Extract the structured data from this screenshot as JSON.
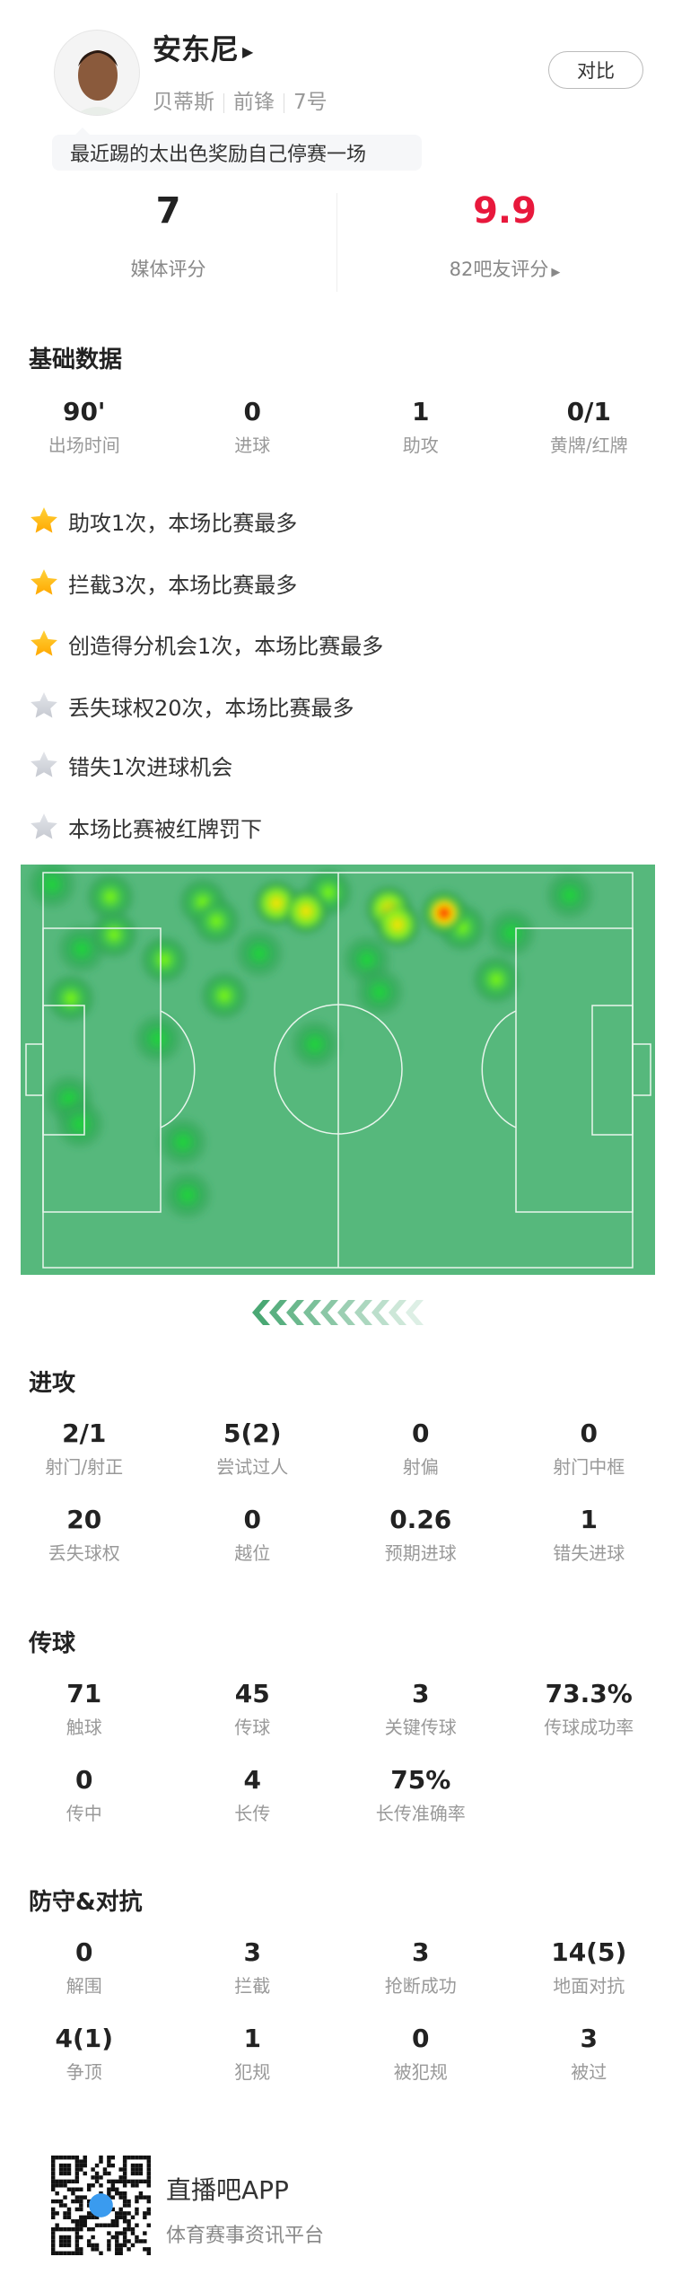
{
  "player": {
    "name": "安东尼",
    "team": "贝蒂斯",
    "position": "前锋",
    "number": "7号",
    "comment": "最近踢的太出色奖励自己停赛一场",
    "compare_label": "对比"
  },
  "ratings": {
    "media": {
      "value": "7",
      "label": "媒体评分"
    },
    "fans": {
      "value": "9.9",
      "label": "82吧友评分",
      "color": "#e8183c"
    }
  },
  "basic": {
    "title": "基础数据",
    "stats": [
      {
        "v": "90'",
        "l": "出场时间"
      },
      {
        "v": "0",
        "l": "进球"
      },
      {
        "v": "1",
        "l": "助攻"
      },
      {
        "v": "0/1",
        "l": "黄牌/红牌"
      }
    ]
  },
  "highlights": [
    {
      "text": "助攻1次，本场比赛最多",
      "star": "gold"
    },
    {
      "text": "拦截3次，本场比赛最多",
      "star": "gold"
    },
    {
      "text": "创造得分机会1次，本场比赛最多",
      "star": "gold"
    },
    {
      "text": "丢失球权20次，本场比赛最多",
      "star": "grey"
    },
    {
      "text": "错失1次进球机会",
      "star": "grey"
    },
    {
      "text": "本场比赛被红牌罚下",
      "star": "grey"
    }
  ],
  "heatmap": {
    "pitch_color": "#56b87c",
    "line_color": "#e8f5ec"
  },
  "sections": [
    {
      "title": "进攻",
      "rows": [
        [
          {
            "v": "2/1",
            "l": "射门/射正"
          },
          {
            "v": "5(2)",
            "l": "尝试过人"
          },
          {
            "v": "0",
            "l": "射偏"
          },
          {
            "v": "0",
            "l": "射门中框"
          }
        ],
        [
          {
            "v": "20",
            "l": "丢失球权"
          },
          {
            "v": "0",
            "l": "越位"
          },
          {
            "v": "0.26",
            "l": "预期进球"
          },
          {
            "v": "1",
            "l": "错失进球"
          }
        ]
      ]
    },
    {
      "title": "传球",
      "rows": [
        [
          {
            "v": "71",
            "l": "触球"
          },
          {
            "v": "45",
            "l": "传球"
          },
          {
            "v": "3",
            "l": "关键传球"
          },
          {
            "v": "73.3%",
            "l": "传球成功率"
          }
        ],
        [
          {
            "v": "0",
            "l": "传中"
          },
          {
            "v": "4",
            "l": "长传"
          },
          {
            "v": "75%",
            "l": "长传准确率"
          }
        ]
      ]
    },
    {
      "title": "防守&对抗",
      "rows": [
        [
          {
            "v": "0",
            "l": "解围"
          },
          {
            "v": "3",
            "l": "拦截"
          },
          {
            "v": "3",
            "l": "抢断成功"
          },
          {
            "v": "14(5)",
            "l": "地面对抗"
          }
        ],
        [
          {
            "v": "4(1)",
            "l": "争顶"
          },
          {
            "v": "1",
            "l": "犯规"
          },
          {
            "v": "0",
            "l": "被犯规"
          },
          {
            "v": "3",
            "l": "被过"
          }
        ]
      ]
    }
  ],
  "footer": {
    "app": "直播吧APP",
    "slogan": "体育赛事资讯平台"
  }
}
